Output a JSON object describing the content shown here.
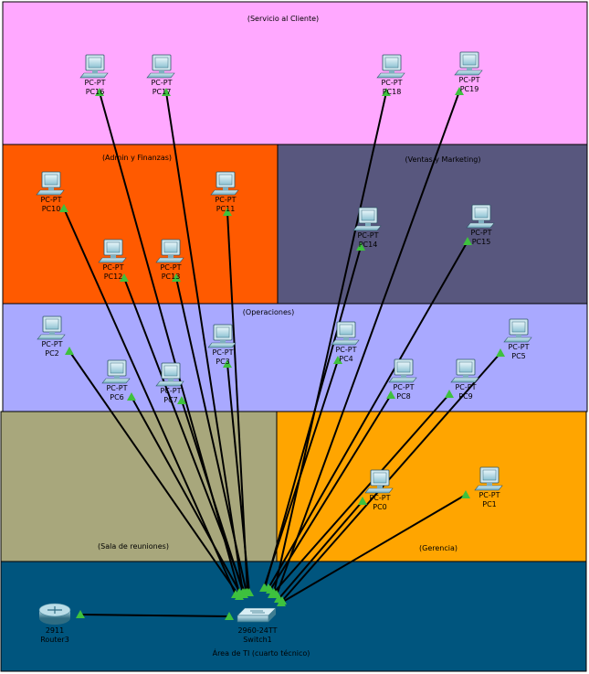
{
  "colors": {
    "servicio": "#ffa8ff",
    "admin": "#ff5a00",
    "ventas": "#58577e",
    "operaciones": "#a9a9ff",
    "sala": "#a8a77c",
    "gerencia": "#ffa500",
    "ti": "#00557e",
    "link": "#000000",
    "port": "#3ec13e"
  },
  "zones": {
    "servicio": "(Servicio al Cliente)",
    "admin": "(Admin y Finanzas)",
    "ventas": "(Ventas y Marketing)",
    "operaciones": "(Operaciones)",
    "sala": "(Sala de reuniones)",
    "gerencia": "(Gerencia)",
    "ti": "Área de TI (cuarto técnico)"
  },
  "devices": {
    "pc16": {
      "type": "PC-PT",
      "name": "PC16",
      "icon": "pc-icon"
    },
    "pc17": {
      "type": "PC-PT",
      "name": "PC17",
      "icon": "pc-icon"
    },
    "pc18": {
      "type": "PC-PT",
      "name": "PC18",
      "icon": "pc-icon"
    },
    "pc19": {
      "type": "PC-PT",
      "name": "PC19",
      "icon": "pc-icon"
    },
    "pc10": {
      "type": "PC-PT",
      "name": "PC10",
      "icon": "pc-icon"
    },
    "pc11": {
      "type": "PC-PT",
      "name": "PC11",
      "icon": "pc-icon"
    },
    "pc12": {
      "type": "PC-PT",
      "name": "PC12",
      "icon": "pc-icon"
    },
    "pc13": {
      "type": "PC-PT",
      "name": "PC13",
      "icon": "pc-icon"
    },
    "pc14": {
      "type": "PC-PT",
      "name": "PC14",
      "icon": "pc-icon"
    },
    "pc15": {
      "type": "PC-PT",
      "name": "PC15",
      "icon": "pc-icon"
    },
    "pc2": {
      "type": "PC-PT",
      "name": "PC2",
      "icon": "pc-icon"
    },
    "pc3": {
      "type": "PC-PT",
      "name": "PC3",
      "icon": "pc-icon"
    },
    "pc4": {
      "type": "PC-PT",
      "name": "PC4",
      "icon": "pc-icon"
    },
    "pc5": {
      "type": "PC-PT",
      "name": "PC5",
      "icon": "pc-icon"
    },
    "pc6": {
      "type": "PC-PT",
      "name": "PC6",
      "icon": "pc-icon"
    },
    "pc7": {
      "type": "PC-PT",
      "name": "PC7",
      "icon": "pc-icon"
    },
    "pc8": {
      "type": "PC-PT",
      "name": "PC8",
      "icon": "pc-icon"
    },
    "pc9": {
      "type": "PC-PT",
      "name": "PC9",
      "icon": "pc-icon"
    },
    "pc0": {
      "type": "PC-PT",
      "name": "PC0",
      "icon": "pc-icon"
    },
    "pc1": {
      "type": "PC-PT",
      "name": "PC1",
      "icon": "pc-icon"
    },
    "router3": {
      "type": "2911",
      "name": "Router3",
      "icon": "router-icon"
    },
    "switch1": {
      "type": "2960-24TT",
      "name": "Switch1",
      "icon": "switch-icon"
    }
  },
  "links": [
    [
      "router3",
      "switch1"
    ],
    [
      "pc16",
      "switch1"
    ],
    [
      "pc17",
      "switch1"
    ],
    [
      "pc18",
      "switch1"
    ],
    [
      "pc19",
      "switch1"
    ],
    [
      "pc10",
      "switch1"
    ],
    [
      "pc11",
      "switch1"
    ],
    [
      "pc12",
      "switch1"
    ],
    [
      "pc13",
      "switch1"
    ],
    [
      "pc14",
      "switch1"
    ],
    [
      "pc15",
      "switch1"
    ],
    [
      "pc2",
      "switch1"
    ],
    [
      "pc3",
      "switch1"
    ],
    [
      "pc4",
      "switch1"
    ],
    [
      "pc5",
      "switch1"
    ],
    [
      "pc6",
      "switch1"
    ],
    [
      "pc7",
      "switch1"
    ],
    [
      "pc8",
      "switch1"
    ],
    [
      "pc9",
      "switch1"
    ],
    [
      "pc0",
      "switch1"
    ],
    [
      "pc1",
      "switch1"
    ]
  ]
}
